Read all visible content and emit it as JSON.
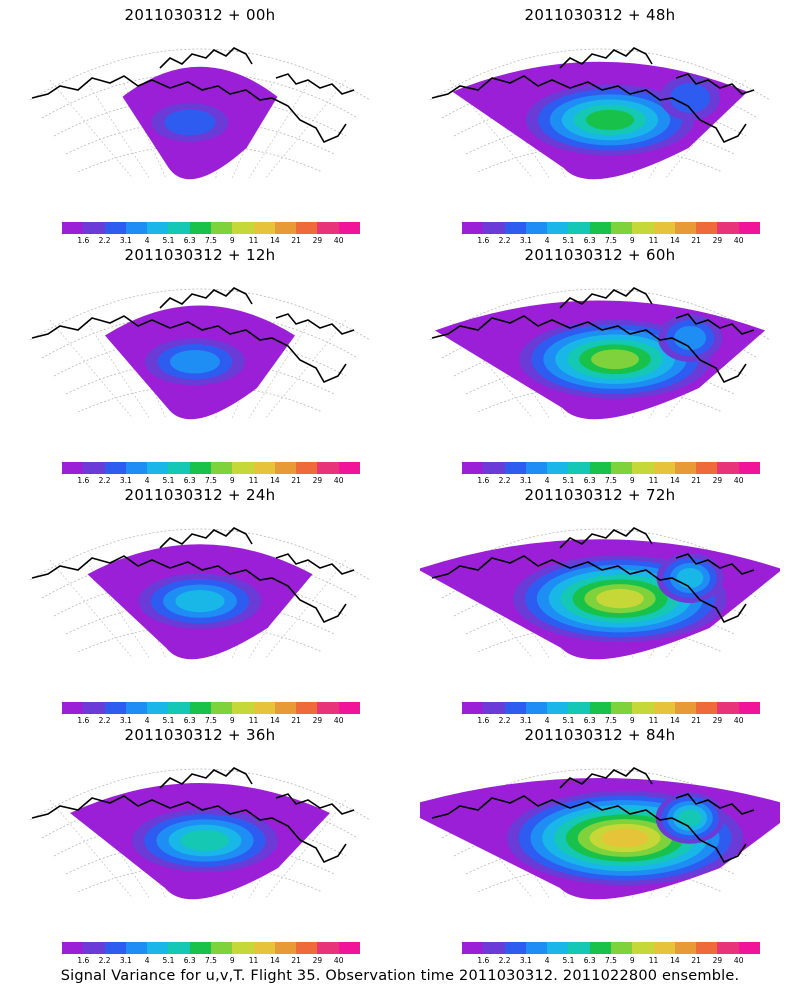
{
  "panels": [
    {
      "title": "2011030312 + 00h",
      "level": 1
    },
    {
      "title": "2011030312 + 48h",
      "level": 5
    },
    {
      "title": "2011030312 + 12h",
      "level": 2
    },
    {
      "title": "2011030312 + 60h",
      "level": 6
    },
    {
      "title": "2011030312 + 24h",
      "level": 3
    },
    {
      "title": "2011030312 + 72h",
      "level": 7
    },
    {
      "title": "2011030312 + 36h",
      "level": 4
    },
    {
      "title": "2011030312 + 84h",
      "level": 8
    }
  ],
  "colorbar": {
    "labels": [
      "1.6",
      "2.2",
      "3.1",
      "4",
      "5.1",
      "6.3",
      "7.5",
      "9",
      "11",
      "14",
      "21",
      "29",
      "40"
    ],
    "colors": [
      "#9b1fd6",
      "#6a3bd6",
      "#2f5cf0",
      "#1e8ef5",
      "#19b6e8",
      "#14c8b4",
      "#18c24a",
      "#7fd23c",
      "#c6d838",
      "#e6c43a",
      "#e79a35",
      "#ef6a3a",
      "#e8337a",
      "#f0149a"
    ]
  },
  "caption": "Signal Variance for u,v,T. Flight 35. Observation time 2011030312. 2011022800 ensemble."
}
